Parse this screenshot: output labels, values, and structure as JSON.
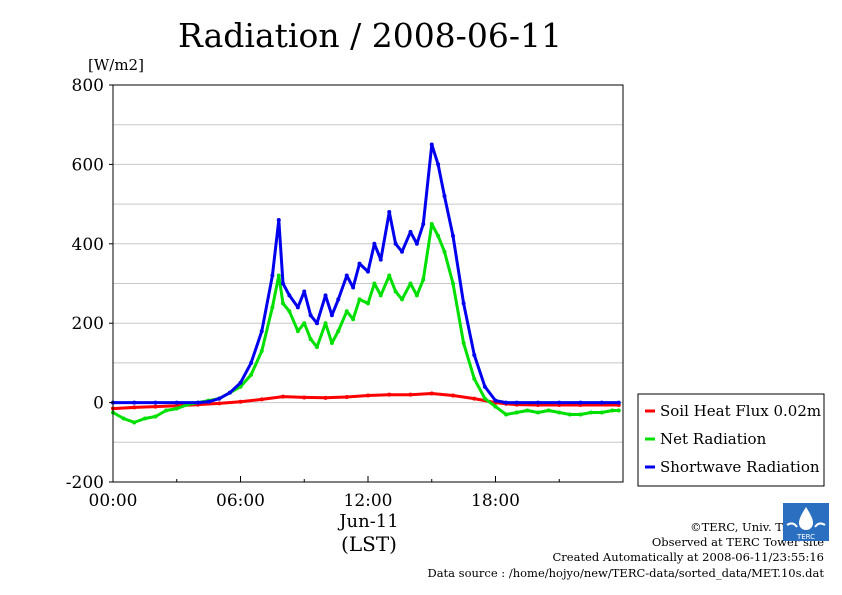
{
  "chart_data": {
    "type": "line",
    "title": "Radiation / 2008-06-11",
    "ylabel_unit": "[W/m2]",
    "xlabel_date": "Jun-11",
    "xlabel": "(LST)",
    "ylim": [
      -200,
      800
    ],
    "yticks": [
      -200,
      0,
      200,
      400,
      600,
      800
    ],
    "xlim_hours": [
      0,
      24
    ],
    "xticks": [
      {
        "hour": 0,
        "label": "00:00"
      },
      {
        "hour": 6,
        "label": "06:00"
      },
      {
        "hour": 12,
        "label": "12:00"
      },
      {
        "hour": 18,
        "label": "18:00"
      }
    ],
    "grid": true,
    "legend_position": "right",
    "legend": [
      "Soil Heat Flux 0.02m",
      "Net Radiation",
      "Shortwave Radiation"
    ],
    "series": [
      {
        "name": "Soil Heat Flux 0.02m",
        "color": "#ff0000",
        "x": [
          0,
          1,
          2,
          3,
          4,
          5,
          6,
          7,
          8,
          9,
          10,
          11,
          12,
          13,
          14,
          15,
          16,
          17,
          18,
          18.5,
          19,
          20,
          21,
          22,
          23.8
        ],
        "y": [
          -15,
          -12,
          -10,
          -8,
          -5,
          -2,
          2,
          8,
          15,
          13,
          12,
          14,
          18,
          20,
          20,
          23,
          18,
          10,
          0,
          -3,
          -5,
          -6,
          -6,
          -6,
          -6
        ]
      },
      {
        "name": "Net Radiation",
        "color": "#00e000",
        "x": [
          0,
          0.5,
          1,
          1.5,
          2,
          2.5,
          3,
          3.5,
          4,
          4.5,
          5,
          5.5,
          6,
          6.5,
          7,
          7.5,
          7.8,
          8,
          8.3,
          8.7,
          9,
          9.3,
          9.6,
          10,
          10.3,
          10.6,
          11,
          11.3,
          11.6,
          12,
          12.3,
          12.6,
          13,
          13.3,
          13.6,
          14,
          14.3,
          14.6,
          15,
          15.3,
          15.6,
          16,
          16.5,
          17,
          17.5,
          18,
          18.5,
          19,
          19.5,
          20,
          20.5,
          21,
          21.5,
          22,
          22.5,
          23,
          23.5,
          23.8
        ],
        "y": [
          -25,
          -40,
          -50,
          -40,
          -35,
          -20,
          -15,
          -5,
          0,
          5,
          10,
          25,
          40,
          70,
          130,
          240,
          320,
          250,
          230,
          180,
          200,
          160,
          140,
          200,
          150,
          180,
          230,
          210,
          260,
          250,
          300,
          270,
          320,
          280,
          260,
          300,
          270,
          310,
          450,
          420,
          380,
          300,
          150,
          60,
          10,
          -10,
          -30,
          -25,
          -20,
          -25,
          -20,
          -25,
          -30,
          -30,
          -25,
          -25,
          -20,
          -20
        ]
      },
      {
        "name": "Shortwave Radiation",
        "color": "#0000ee",
        "x": [
          0,
          1,
          2,
          3,
          4,
          4.5,
          5,
          5.5,
          6,
          6.5,
          7,
          7.5,
          7.8,
          8,
          8.3,
          8.7,
          9,
          9.3,
          9.6,
          10,
          10.3,
          10.6,
          11,
          11.3,
          11.6,
          12,
          12.3,
          12.6,
          13,
          13.3,
          13.6,
          14,
          14.3,
          14.6,
          15,
          15.3,
          15.6,
          16,
          16.5,
          17,
          17.5,
          18,
          18.5,
          19,
          20,
          21,
          22,
          23,
          23.8
        ],
        "y": [
          0,
          0,
          0,
          0,
          0,
          2,
          10,
          25,
          50,
          100,
          180,
          320,
          460,
          300,
          270,
          240,
          280,
          220,
          200,
          270,
          220,
          260,
          320,
          290,
          350,
          330,
          400,
          360,
          480,
          400,
          380,
          430,
          400,
          450,
          650,
          600,
          520,
          420,
          250,
          120,
          40,
          5,
          0,
          0,
          0,
          0,
          0,
          0,
          0
        ]
      }
    ]
  },
  "credits": [
    "©TERC, Univ. Tsukuba",
    "Observed at TERC Tower site",
    "Created Automatically at 2008-06-11/23:55:16",
    "Data source : /home/hojyo/new/TERC-data/sorted_data/MET.10s.dat"
  ],
  "logo_text": "TERC"
}
